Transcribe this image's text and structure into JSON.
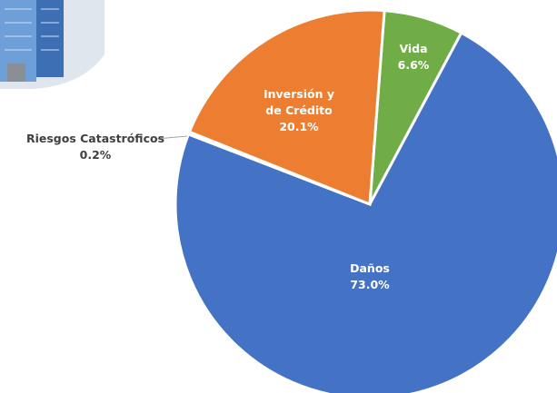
{
  "chart_data": {
    "type": "pie",
    "categories": [
      "Vida",
      "Daños",
      "Riesgos Catastróficos",
      "Inversión y de Crédito"
    ],
    "values": [
      6.6,
      73,
      0.2,
      20.1
    ],
    "value_labels": [
      "6.6%",
      "73.0%",
      "0.2%",
      "20.1%"
    ],
    "colors": [
      "#70ad47",
      "#4472c4",
      "#a5a5a5",
      "#ed7d31"
    ]
  }
}
